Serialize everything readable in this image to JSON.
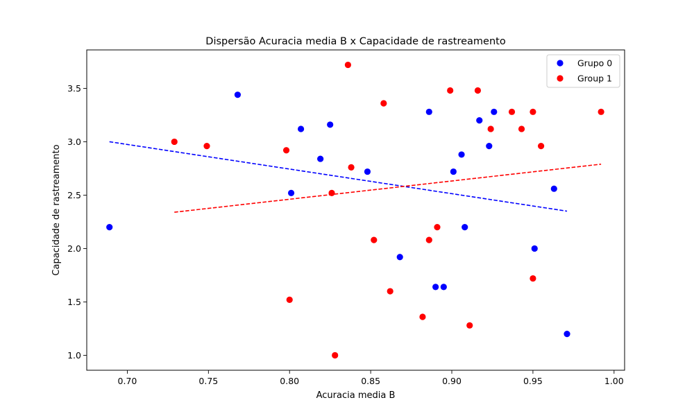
{
  "chart_data": {
    "type": "scatter",
    "title": "Dispersão Acuracia media B x Capacidade de rastreamento",
    "xlabel": "Acuracia media B",
    "ylabel": "Capacidade de rastreamento",
    "xlim": [
      0.675,
      1.0065
    ],
    "ylim": [
      0.86,
      3.86
    ],
    "xticks": [
      0.7,
      0.75,
      0.8,
      0.85,
      0.9,
      0.95,
      1.0
    ],
    "xtick_labels": [
      "0.70",
      "0.75",
      "0.80",
      "0.85",
      "0.90",
      "0.95",
      "1.00"
    ],
    "yticks": [
      1.0,
      1.5,
      2.0,
      2.5,
      3.0,
      3.5
    ],
    "ytick_labels": [
      "1.0",
      "1.5",
      "2.0",
      "2.5",
      "3.0",
      "3.5"
    ],
    "grid": false,
    "legend": "top-right",
    "series": [
      {
        "name": "Grupo 0",
        "color": "#0000ff",
        "points": [
          [
            0.689,
            2.2
          ],
          [
            0.768,
            3.44
          ],
          [
            0.801,
            2.52
          ],
          [
            0.807,
            3.12
          ],
          [
            0.819,
            2.84
          ],
          [
            0.825,
            3.16
          ],
          [
            0.848,
            2.72
          ],
          [
            0.868,
            1.92
          ],
          [
            0.886,
            3.28
          ],
          [
            0.89,
            1.64
          ],
          [
            0.895,
            1.64
          ],
          [
            0.901,
            2.72
          ],
          [
            0.906,
            2.88
          ],
          [
            0.908,
            2.2
          ],
          [
            0.917,
            3.2
          ],
          [
            0.923,
            2.96
          ],
          [
            0.926,
            3.28
          ],
          [
            0.951,
            2.0
          ],
          [
            0.963,
            2.56
          ],
          [
            0.971,
            1.2
          ]
        ],
        "trend": {
          "x": [
            0.689,
            0.971
          ],
          "y": [
            3.0,
            2.35
          ],
          "style": "dashed"
        }
      },
      {
        "name": "Group 1",
        "color": "#ff0000",
        "points": [
          [
            0.729,
            3.0
          ],
          [
            0.749,
            2.96
          ],
          [
            0.798,
            2.92
          ],
          [
            0.8,
            1.52
          ],
          [
            0.826,
            2.52
          ],
          [
            0.828,
            1.0
          ],
          [
            0.836,
            3.72
          ],
          [
            0.838,
            2.76
          ],
          [
            0.852,
            2.08
          ],
          [
            0.858,
            3.36
          ],
          [
            0.862,
            1.6
          ],
          [
            0.882,
            1.36
          ],
          [
            0.886,
            2.08
          ],
          [
            0.891,
            2.2
          ],
          [
            0.899,
            3.48
          ],
          [
            0.911,
            1.28
          ],
          [
            0.916,
            3.48
          ],
          [
            0.924,
            3.12
          ],
          [
            0.937,
            3.28
          ],
          [
            0.943,
            3.12
          ],
          [
            0.95,
            3.28
          ],
          [
            0.95,
            1.72
          ],
          [
            0.955,
            2.96
          ],
          [
            0.992,
            3.28
          ]
        ],
        "trend": {
          "x": [
            0.729,
            0.992
          ],
          "y": [
            2.34,
            2.79
          ],
          "style": "dashed"
        }
      }
    ]
  }
}
